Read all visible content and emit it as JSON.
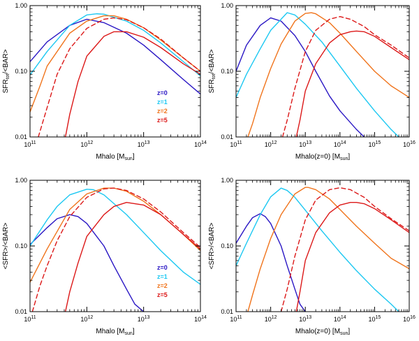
{
  "colors": {
    "z0": "#2a17c4",
    "z1": "#1cc8f2",
    "z2": "#f0741c",
    "z5": "#dc1818"
  },
  "chart_data": [
    {
      "id": "top-left",
      "type": "line",
      "ylabel": {
        "main": "SFR",
        "sub": "tot",
        "rest": "/<BAR>"
      },
      "xlabel": {
        "main": "Mhalo [M",
        "sub": "sun",
        "rest": "]"
      },
      "xscale": "log",
      "yscale": "log",
      "xlim": [
        100000000000.0,
        100000000000000.0
      ],
      "ylim": [
        0.01,
        1.0
      ],
      "xticks": [
        {
          "base": "10",
          "exp": "11",
          "value": 100000000000.0
        },
        {
          "base": "10",
          "exp": "12",
          "value": 1000000000000.0
        },
        {
          "base": "10",
          "exp": "13",
          "value": 10000000000000.0
        },
        {
          "base": "10",
          "exp": "14",
          "value": 100000000000000.0
        }
      ],
      "yticks": [
        {
          "label": "0.01",
          "value": 0.01
        },
        {
          "label": "0.10",
          "value": 0.1
        },
        {
          "label": "1.00",
          "value": 1.0
        }
      ],
      "legend": {
        "placement": "bottom-right",
        "entries": [
          {
            "label": "z=0",
            "color_key": "z0"
          },
          {
            "label": "z=1",
            "color_key": "z1"
          },
          {
            "label": "z=2",
            "color_key": "z2"
          },
          {
            "label": "z=5",
            "color_key": "z5"
          }
        ]
      },
      "series": [
        {
          "color_key": "z0",
          "style": "solid",
          "x": [
            100000000000.0,
            200000000000.0,
            500000000000.0,
            1000000000000.0,
            2000000000000.0,
            5000000000000.0,
            10000000000000.0,
            20000000000000.0,
            50000000000000.0,
            100000000000000.0
          ],
          "y": [
            0.14,
            0.28,
            0.5,
            0.62,
            0.55,
            0.38,
            0.25,
            0.15,
            0.075,
            0.045
          ]
        },
        {
          "color_key": "z1",
          "style": "solid",
          "x": [
            100000000000.0,
            200000000000.0,
            500000000000.0,
            1000000000000.0,
            1500000000000.0,
            2000000000000.0,
            5000000000000.0,
            10000000000000.0,
            20000000000000.0,
            50000000000000.0,
            100000000000000.0
          ],
          "y": [
            0.088,
            0.2,
            0.5,
            0.72,
            0.75,
            0.74,
            0.58,
            0.42,
            0.27,
            0.14,
            0.085
          ]
        },
        {
          "color_key": "z2",
          "style": "solid",
          "x": [
            100000000000.0,
            150000000000.0,
            200000000000.0,
            500000000000.0,
            1000000000000.0,
            2000000000000.0,
            3000000000000.0,
            5000000000000.0,
            10000000000000.0,
            20000000000000.0,
            50000000000000.0,
            100000000000000.0
          ],
          "y": [
            0.024,
            0.06,
            0.12,
            0.38,
            0.58,
            0.7,
            0.7,
            0.62,
            0.46,
            0.3,
            0.16,
            0.1
          ]
        },
        {
          "color_key": "z5",
          "style": "dashed",
          "x": [
            140000000000.0,
            200000000000.0,
            300000000000.0,
            500000000000.0,
            1000000000000.0,
            2000000000000.0,
            3000000000000.0,
            5000000000000.0,
            10000000000000.0,
            20000000000000.0,
            50000000000000.0,
            100000000000000.0
          ],
          "y": [
            0.01,
            0.028,
            0.09,
            0.22,
            0.45,
            0.62,
            0.65,
            0.61,
            0.46,
            0.31,
            0.16,
            0.1
          ]
        },
        {
          "color_key": "z5",
          "style": "solid",
          "x": [
            420000000000.0,
            500000000000.0,
            700000000000.0,
            1000000000000.0,
            2000000000000.0,
            3000000000000.0,
            5000000000000.0,
            10000000000000.0,
            20000000000000.0,
            50000000000000.0,
            100000000000000.0
          ],
          "y": [
            0.01,
            0.022,
            0.07,
            0.17,
            0.34,
            0.4,
            0.4,
            0.33,
            0.23,
            0.13,
            0.09
          ]
        }
      ]
    },
    {
      "id": "top-right",
      "type": "line",
      "ylabel": {
        "main": "SFR",
        "sub": "tot",
        "rest": "/<BAR>"
      },
      "xlabel": {
        "main": "Mhalo(z=0) [M",
        "sub": "sun",
        "rest": "]"
      },
      "xscale": "log",
      "yscale": "log",
      "xlim": [
        100000000000.0,
        1e+16
      ],
      "ylim": [
        0.01,
        1.0
      ],
      "xticks": [
        {
          "base": "10",
          "exp": "11",
          "value": 100000000000.0
        },
        {
          "base": "10",
          "exp": "12",
          "value": 1000000000000.0
        },
        {
          "base": "10",
          "exp": "13",
          "value": 10000000000000.0
        },
        {
          "base": "10",
          "exp": "14",
          "value": 100000000000000.0
        },
        {
          "base": "10",
          "exp": "15",
          "value": 1000000000000000.0
        },
        {
          "base": "10",
          "exp": "16",
          "value": 1e+16
        }
      ],
      "yticks": [
        {
          "label": "0.01",
          "value": 0.01
        },
        {
          "label": "0.10",
          "value": 0.1
        },
        {
          "label": "1.00",
          "value": 1.0
        }
      ],
      "series": [
        {
          "color_key": "z0",
          "style": "solid",
          "x": [
            100000000000.0,
            200000000000.0,
            500000000000.0,
            1000000000000.0,
            2000000000000.0,
            5000000000000.0,
            10000000000000.0,
            20000000000000.0,
            50000000000000.0,
            100000000000000.0,
            300000000000000.0,
            500000000000000.0
          ],
          "y": [
            0.1,
            0.25,
            0.5,
            0.65,
            0.58,
            0.35,
            0.2,
            0.1,
            0.042,
            0.025,
            0.013,
            0.01
          ]
        },
        {
          "color_key": "z1",
          "style": "solid",
          "x": [
            100000000000.0,
            200000000000.0,
            500000000000.0,
            1000000000000.0,
            3000000000000.0,
            5000000000000.0,
            10000000000000.0,
            30000000000000.0,
            100000000000000.0,
            300000000000000.0,
            1000000000000000.0,
            3000000000000000.0,
            5000000000000000.0
          ],
          "y": [
            0.04,
            0.09,
            0.22,
            0.42,
            0.78,
            0.72,
            0.52,
            0.28,
            0.12,
            0.055,
            0.025,
            0.013,
            0.01
          ]
        },
        {
          "color_key": "z2",
          "style": "solid",
          "x": [
            220000000000.0,
            300000000000.0,
            500000000000.0,
            1000000000000.0,
            2000000000000.0,
            5000000000000.0,
            10000000000000.0,
            15000000000000.0,
            20000000000000.0,
            50000000000000.0,
            100000000000000.0,
            300000000000000.0,
            1000000000000000.0,
            3000000000000000.0,
            1e+16
          ],
          "y": [
            0.01,
            0.016,
            0.04,
            0.11,
            0.26,
            0.58,
            0.76,
            0.78,
            0.75,
            0.55,
            0.38,
            0.2,
            0.1,
            0.06,
            0.04
          ]
        },
        {
          "color_key": "z5",
          "style": "dashed",
          "x": [
            2200000000000.0,
            3000000000000.0,
            5000000000000.0,
            10000000000000.0,
            20000000000000.0,
            50000000000000.0,
            100000000000000.0,
            200000000000000.0,
            500000000000000.0,
            1000000000000000.0,
            3000000000000000.0,
            1e+16
          ],
          "y": [
            0.01,
            0.018,
            0.055,
            0.2,
            0.42,
            0.62,
            0.68,
            0.62,
            0.48,
            0.36,
            0.25,
            0.16
          ]
        },
        {
          "color_key": "z5",
          "style": "solid",
          "x": [
            5500000000000.0,
            7000000000000.0,
            10000000000000.0,
            20000000000000.0,
            50000000000000.0,
            100000000000000.0,
            200000000000000.0,
            300000000000000.0,
            500000000000000.0,
            1000000000000000.0,
            3000000000000000.0,
            1e+16
          ],
          "y": [
            0.01,
            0.018,
            0.05,
            0.13,
            0.27,
            0.36,
            0.4,
            0.41,
            0.4,
            0.34,
            0.23,
            0.15
          ]
        }
      ]
    },
    {
      "id": "bottom-left",
      "type": "line",
      "ylabel": {
        "main": "<SFR>/<BAR>"
      },
      "xlabel": {
        "main": "Mhalo [M",
        "sub": "sun",
        "rest": "]"
      },
      "xscale": "log",
      "yscale": "log",
      "xlim": [
        100000000000.0,
        100000000000000.0
      ],
      "ylim": [
        0.01,
        1.0
      ],
      "xticks": [
        {
          "base": "10",
          "exp": "11",
          "value": 100000000000.0
        },
        {
          "base": "10",
          "exp": "12",
          "value": 1000000000000.0
        },
        {
          "base": "10",
          "exp": "13",
          "value": 10000000000000.0
        },
        {
          "base": "10",
          "exp": "14",
          "value": 100000000000000.0
        }
      ],
      "yticks": [
        {
          "label": "0.01",
          "value": 0.01
        },
        {
          "label": "0.10",
          "value": 0.1
        },
        {
          "label": "1.00",
          "value": 1.0
        }
      ],
      "legend": {
        "placement": "bottom-right",
        "entries": [
          {
            "label": "z=0",
            "color_key": "z0"
          },
          {
            "label": "z=1",
            "color_key": "z1"
          },
          {
            "label": "z=2",
            "color_key": "z2"
          },
          {
            "label": "z=5",
            "color_key": "z5"
          }
        ]
      },
      "series": [
        {
          "color_key": "z0",
          "style": "solid",
          "x": [
            100000000000.0,
            200000000000.0,
            300000000000.0,
            500000000000.0,
            700000000000.0,
            1000000000000.0,
            2000000000000.0,
            3000000000000.0,
            5000000000000.0,
            7000000000000.0,
            10000000000000.0
          ],
          "y": [
            0.105,
            0.19,
            0.26,
            0.3,
            0.28,
            0.22,
            0.1,
            0.05,
            0.022,
            0.013,
            0.01
          ]
        },
        {
          "color_key": "z1",
          "style": "solid",
          "x": [
            100000000000.0,
            200000000000.0,
            300000000000.0,
            500000000000.0,
            1000000000000.0,
            1300000000000.0,
            2000000000000.0,
            5000000000000.0,
            10000000000000.0,
            20000000000000.0,
            50000000000000.0,
            100000000000000.0
          ],
          "y": [
            0.1,
            0.25,
            0.4,
            0.6,
            0.73,
            0.72,
            0.6,
            0.3,
            0.16,
            0.085,
            0.04,
            0.026
          ]
        },
        {
          "color_key": "z2",
          "style": "solid",
          "x": [
            100000000000.0,
            200000000000.0,
            500000000000.0,
            1000000000000.0,
            2000000000000.0,
            3000000000000.0,
            5000000000000.0,
            10000000000000.0,
            20000000000000.0,
            50000000000000.0,
            100000000000000.0
          ],
          "y": [
            0.028,
            0.09,
            0.36,
            0.62,
            0.76,
            0.76,
            0.68,
            0.48,
            0.3,
            0.15,
            0.085
          ]
        },
        {
          "color_key": "z5",
          "style": "dashed",
          "x": [
            110000000000.0,
            150000000000.0,
            200000000000.0,
            300000000000.0,
            500000000000.0,
            1000000000000.0,
            2000000000000.0,
            3000000000000.0,
            5000000000000.0,
            10000000000000.0,
            20000000000000.0,
            50000000000000.0,
            100000000000000.0
          ],
          "y": [
            0.01,
            0.025,
            0.05,
            0.12,
            0.28,
            0.55,
            0.74,
            0.76,
            0.7,
            0.52,
            0.33,
            0.16,
            0.095
          ]
        },
        {
          "color_key": "z5",
          "style": "solid",
          "x": [
            420000000000.0,
            500000000000.0,
            700000000000.0,
            1000000000000.0,
            2000000000000.0,
            3000000000000.0,
            5000000000000.0,
            10000000000000.0,
            20000000000000.0,
            50000000000000.0,
            100000000000000.0
          ],
          "y": [
            0.01,
            0.02,
            0.055,
            0.14,
            0.3,
            0.4,
            0.46,
            0.42,
            0.3,
            0.15,
            0.09
          ]
        }
      ]
    },
    {
      "id": "bottom-right",
      "type": "line",
      "ylabel": {
        "main": "<SFR>/<BAR>"
      },
      "xlabel": {
        "main": "Mhalo(z=0) [M",
        "sub": "sun",
        "rest": "]"
      },
      "xscale": "log",
      "yscale": "log",
      "xlim": [
        100000000000.0,
        1e+16
      ],
      "ylim": [
        0.01,
        1.0
      ],
      "xticks": [
        {
          "base": "10",
          "exp": "11",
          "value": 100000000000.0
        },
        {
          "base": "10",
          "exp": "12",
          "value": 1000000000000.0
        },
        {
          "base": "10",
          "exp": "13",
          "value": 10000000000000.0
        },
        {
          "base": "10",
          "exp": "14",
          "value": 100000000000000.0
        },
        {
          "base": "10",
          "exp": "15",
          "value": 1000000000000000.0
        },
        {
          "base": "10",
          "exp": "16",
          "value": 1e+16
        }
      ],
      "yticks": [
        {
          "label": "0.01",
          "value": 0.01
        },
        {
          "label": "0.10",
          "value": 0.1
        },
        {
          "label": "1.00",
          "value": 1.0
        }
      ],
      "series": [
        {
          "color_key": "z0",
          "style": "solid",
          "x": [
            100000000000.0,
            200000000000.0,
            300000000000.0,
            500000000000.0,
            700000000000.0,
            1000000000000.0,
            2000000000000.0,
            3000000000000.0,
            5000000000000.0,
            7000000000000.0,
            10000000000000.0
          ],
          "y": [
            0.11,
            0.2,
            0.27,
            0.31,
            0.28,
            0.22,
            0.1,
            0.05,
            0.022,
            0.013,
            0.01
          ]
        },
        {
          "color_key": "z1",
          "style": "solid",
          "x": [
            100000000000.0,
            200000000000.0,
            500000000000.0,
            1000000000000.0,
            2000000000000.0,
            3000000000000.0,
            5000000000000.0,
            10000000000000.0,
            30000000000000.0,
            100000000000000.0,
            300000000000000.0,
            1000000000000000.0,
            3000000000000000.0,
            5000000000000000.0
          ],
          "y": [
            0.05,
            0.11,
            0.3,
            0.56,
            0.76,
            0.7,
            0.55,
            0.35,
            0.17,
            0.08,
            0.042,
            0.022,
            0.013,
            0.01
          ]
        },
        {
          "color_key": "z2",
          "style": "solid",
          "x": [
            220000000000.0,
            300000000000.0,
            500000000000.0,
            1000000000000.0,
            2000000000000.0,
            5000000000000.0,
            10000000000000.0,
            12000000000000.0,
            20000000000000.0,
            50000000000000.0,
            100000000000000.0,
            300000000000000.0,
            1000000000000000.0,
            3000000000000000.0,
            1e+16
          ],
          "y": [
            0.01,
            0.018,
            0.045,
            0.13,
            0.3,
            0.62,
            0.78,
            0.78,
            0.72,
            0.52,
            0.36,
            0.2,
            0.11,
            0.065,
            0.045
          ]
        },
        {
          "color_key": "z5",
          "style": "dashed",
          "x": [
            2000000000000.0,
            3000000000000.0,
            5000000000000.0,
            10000000000000.0,
            20000000000000.0,
            50000000000000.0,
            100000000000000.0,
            200000000000000.0,
            500000000000000.0,
            1000000000000000.0,
            3000000000000000.0,
            1e+16
          ],
          "y": [
            0.01,
            0.022,
            0.07,
            0.25,
            0.5,
            0.72,
            0.77,
            0.72,
            0.55,
            0.4,
            0.26,
            0.17
          ]
        },
        {
          "color_key": "z5",
          "style": "solid",
          "x": [
            5500000000000.0,
            7000000000000.0,
            10000000000000.0,
            20000000000000.0,
            50000000000000.0,
            100000000000000.0,
            200000000000000.0,
            300000000000000.0,
            500000000000000.0,
            1000000000000000.0,
            3000000000000000.0,
            1e+16
          ],
          "y": [
            0.01,
            0.02,
            0.06,
            0.16,
            0.32,
            0.42,
            0.46,
            0.46,
            0.44,
            0.37,
            0.25,
            0.16
          ]
        }
      ]
    }
  ]
}
